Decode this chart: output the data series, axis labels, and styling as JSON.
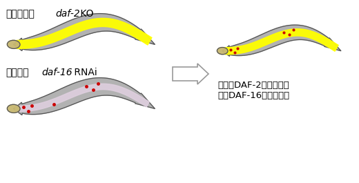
{
  "label_top_pre": "神経特異的",
  "label_top_gene": "daf-2",
  "label_top_post": " KO",
  "label_bottom_pre": "腸特異的",
  "label_bottom_gene": "daf-16",
  "label_bottom_post": " RNAi",
  "result_line1": "神経でDAF-2の機能抑制",
  "result_line2": "腸でDAF-16の機能抑制",
  "bg_color": "#ffffff",
  "worm_body_color": "#aaaaaa",
  "worm_outline_color": "#555555",
  "worm_nerve_color": "#e0d0e0",
  "worm_gut_color": "#ffff00",
  "red_dot_color": "#cc0000",
  "arrow_fill_color": "#ffffff",
  "arrow_edge_color": "#999999",
  "head_color": "#c8b870"
}
